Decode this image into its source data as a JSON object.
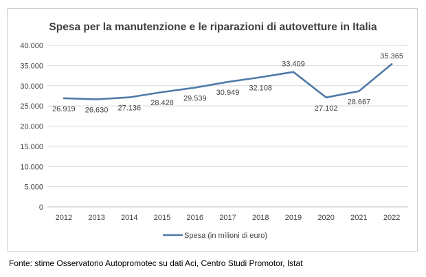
{
  "chart_data": {
    "type": "line",
    "title": "Spesa per la manutenzione e le riparazioni di autovetture in Italia",
    "categories": [
      "2012",
      "2013",
      "2014",
      "2015",
      "2016",
      "2017",
      "2018",
      "2019",
      "2020",
      "2021",
      "2022"
    ],
    "series": [
      {
        "name": "Spesa (in milioni di euro)",
        "values": [
          26919,
          26630,
          27136,
          28428,
          29539,
          30949,
          32108,
          33409,
          27102,
          28667,
          35365
        ],
        "labels": [
          "26.919",
          "26.630",
          "27.136",
          "28.428",
          "29.539",
          "30.949",
          "32.108",
          "33.409",
          "27.102",
          "28.667",
          "35.365"
        ],
        "color": "#4f79a8"
      }
    ],
    "ylim": [
      0,
      40000
    ],
    "yticks": [
      0,
      5000,
      10000,
      15000,
      20000,
      25000,
      30000,
      35000,
      40000
    ],
    "ytick_labels": [
      "0",
      "5.000",
      "10.000",
      "15.000",
      "20.000",
      "25.000",
      "30.000",
      "35.000",
      "40.000"
    ],
    "grid": true,
    "legend": "bottom",
    "xlabel": "",
    "ylabel": ""
  },
  "footer": {
    "source": "Fonte: stime Osservatorio Autopromotec su dati Aci, Centro Studi Promotor, Istat"
  },
  "colors": {
    "line": "#4f79a8",
    "grid": "#d9d9d9",
    "text": "#404040"
  }
}
